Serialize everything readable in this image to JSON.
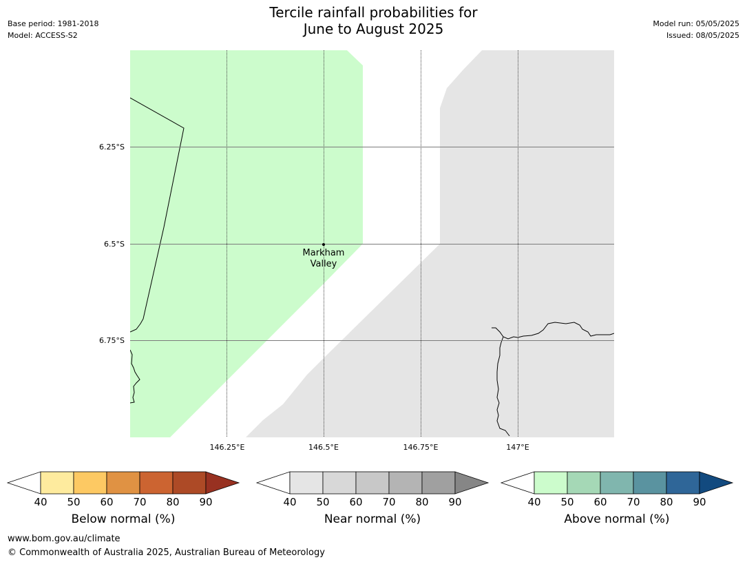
{
  "header": {
    "title_line1": "Tercile rainfall probabilities for",
    "title_line2": "June to August 2025",
    "base_period": "Base period: 1981-2018",
    "model": "Model: ACCESS-S2",
    "model_run": "Model run: 05/05/2025",
    "issued": "Issued: 08/05/2025"
  },
  "map": {
    "place_label_line1": "Markham",
    "place_label_line2": "Valley",
    "lat_labels": [
      "6.25°S",
      "6.5°S",
      "6.75°S"
    ],
    "lon_labels": [
      "146.25°E",
      "146.5°E",
      "146.75°E",
      "147°E"
    ],
    "region_colors": {
      "above_normal_40_50": "#ccfccc",
      "near_normal_40_50": "#e5e5e5"
    }
  },
  "colorbars": [
    {
      "label": "Below normal (%)",
      "ticks": [
        "40",
        "50",
        "60",
        "70",
        "80",
        "90"
      ],
      "colors": [
        "#ffffff",
        "#feeb9e",
        "#fdc963",
        "#e09243",
        "#cc6431",
        "#ad4a26",
        "#983121"
      ]
    },
    {
      "label": "Near normal (%)",
      "ticks": [
        "40",
        "50",
        "60",
        "70",
        "80",
        "90"
      ],
      "colors": [
        "#ffffff",
        "#e5e5e5",
        "#d8d8d8",
        "#c8c8c8",
        "#b4b4b4",
        "#a0a0a0",
        "#868686"
      ]
    },
    {
      "label": "Above normal (%)",
      "ticks": [
        "40",
        "50",
        "60",
        "70",
        "80",
        "90"
      ],
      "colors": [
        "#ffffff",
        "#ccfccc",
        "#a5d8b6",
        "#80b6ae",
        "#5a93a0",
        "#2f6698",
        "#124a7f"
      ]
    }
  ],
  "footer": {
    "url": "www.bom.gov.au/climate",
    "copyright": "© Commonwealth of Australia 2025, Australian Bureau of Meteorology"
  }
}
